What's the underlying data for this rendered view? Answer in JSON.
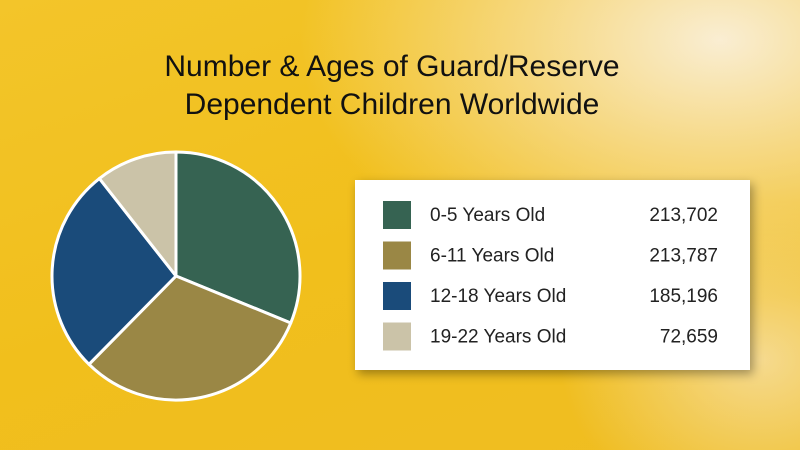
{
  "chart_data": {
    "type": "pie",
    "title": [
      "Number & Ages of Guard/Reserve",
      "Dependent Children Worldwide"
    ],
    "categories": [
      "0-5 Years Old",
      "6-11 Years Old",
      "12-18 Years Old",
      "19-22 Years Old"
    ],
    "values": [
      213702,
      213787,
      185196,
      72659
    ],
    "value_labels": [
      "213,702",
      "213,787",
      "185,196",
      "72,659"
    ],
    "colors": [
      "#366352",
      "#9a8745",
      "#1a4b7a",
      "#cbc3a8"
    ]
  }
}
